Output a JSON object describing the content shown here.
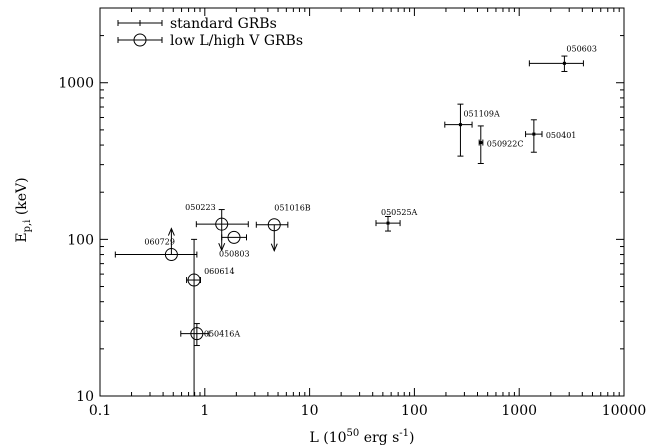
{
  "chart_data": {
    "type": "scatter",
    "title": "",
    "xlabel": "L (10",
    "xlabel_exp": "50",
    "xlabel_unit": "erg s",
    "xlabel_unit_exp": "-1",
    "xlabel_close": ")",
    "ylabel_main": "E",
    "ylabel_sub": "p,i",
    "ylabel_unit": " (keV)",
    "xscale": "log",
    "yscale": "log",
    "xlim": [
      0.1,
      10000
    ],
    "ylim": [
      10,
      3000
    ],
    "x_ticks": [
      {
        "value": 0.1,
        "label": "0.1"
      },
      {
        "value": 1,
        "label": "1"
      },
      {
        "value": 10,
        "label": "10"
      },
      {
        "value": 100,
        "label": "100"
      },
      {
        "value": 1000,
        "label": "1000"
      },
      {
        "value": 10000,
        "label": "10000"
      }
    ],
    "y_ticks": [
      {
        "value": 10,
        "label": "10"
      },
      {
        "value": 100,
        "label": "100"
      },
      {
        "value": 1000,
        "label": "1000"
      }
    ],
    "legend": {
      "placement": "top-left",
      "entries": [
        {
          "label": "standard GRBs",
          "marker": "cross"
        },
        {
          "label": "low L/high V GRBs",
          "marker": "circle"
        }
      ]
    },
    "series": [
      {
        "name": "standard GRBs",
        "marker": "cross",
        "points": [
          {
            "label": "050603",
            "x": 2700,
            "y": 1330,
            "xlo": 1250,
            "xhi": 4100,
            "ylo": 1180,
            "yhi": 1480
          },
          {
            "label": "051109A",
            "x": 275,
            "y": 540,
            "xlo": 195,
            "xhi": 355,
            "ylo": 340,
            "yhi": 730
          },
          {
            "label": "050922C",
            "x": 430,
            "y": 415,
            "xlo": 415,
            "xhi": 450,
            "ylo": 305,
            "yhi": 530
          },
          {
            "label": "050401",
            "x": 1380,
            "y": 470,
            "xlo": 1150,
            "xhi": 1650,
            "ylo": 360,
            "yhi": 580
          },
          {
            "label": "050525A",
            "x": 56,
            "y": 127,
            "xlo": 43,
            "xhi": 73,
            "ylo": 113,
            "yhi": 140
          }
        ]
      },
      {
        "name": "low L/high V GRBs",
        "marker": "circle",
        "points": [
          {
            "label": "050223",
            "x": 1.45,
            "y": 125,
            "xlo": 0.83,
            "xhi": 2.6,
            "ylo": null,
            "yhi": 155,
            "arrow": "down"
          },
          {
            "label": "050803",
            "x": 1.9,
            "y": 103,
            "xlo": 1.45,
            "xhi": 2.5,
            "ylo": null,
            "yhi": null
          },
          {
            "label": "051016B",
            "x": 4.6,
            "y": 124,
            "xlo": 3.1,
            "xhi": 6.2,
            "ylo": null,
            "yhi": null,
            "arrow": "down"
          },
          {
            "label": "060729",
            "x": 0.48,
            "y": 80,
            "xlo": 0.14,
            "xhi": 0.84,
            "ylo": null,
            "yhi": null,
            "arrow": "up"
          },
          {
            "label": "060614",
            "x": 0.79,
            "y": 55,
            "xlo": 0.67,
            "xhi": 0.91,
            "ylo": 10,
            "yhi": 100
          },
          {
            "label": "050416A",
            "x": 0.84,
            "y": 25,
            "xlo": 0.59,
            "xhi": 1.1,
            "ylo": 21,
            "yhi": 29
          }
        ]
      }
    ]
  }
}
